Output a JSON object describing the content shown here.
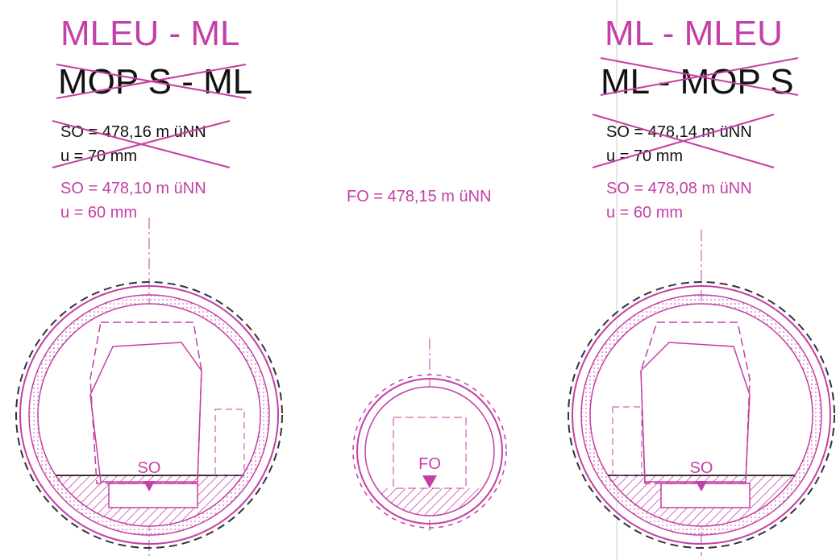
{
  "left": {
    "title": "MLEU - ML",
    "old_title": "MOP S - ML",
    "old_level": "SO = 478,16 m üNN",
    "old_u": "u = 70 mm",
    "level": "SO = 478,10 m üNN",
    "u": "u = 60 mm",
    "marker": "SO"
  },
  "middle": {
    "level": "FO = 478,15 m üNN",
    "marker": "FO"
  },
  "right": {
    "title": "ML - MLEU",
    "old_title": "ML - MOP S",
    "old_level": "SO = 478,14 m üNN",
    "old_u": "u = 70 mm",
    "level": "SO = 478,08 m üNN",
    "u": "u = 60 mm",
    "marker": "SO"
  }
}
